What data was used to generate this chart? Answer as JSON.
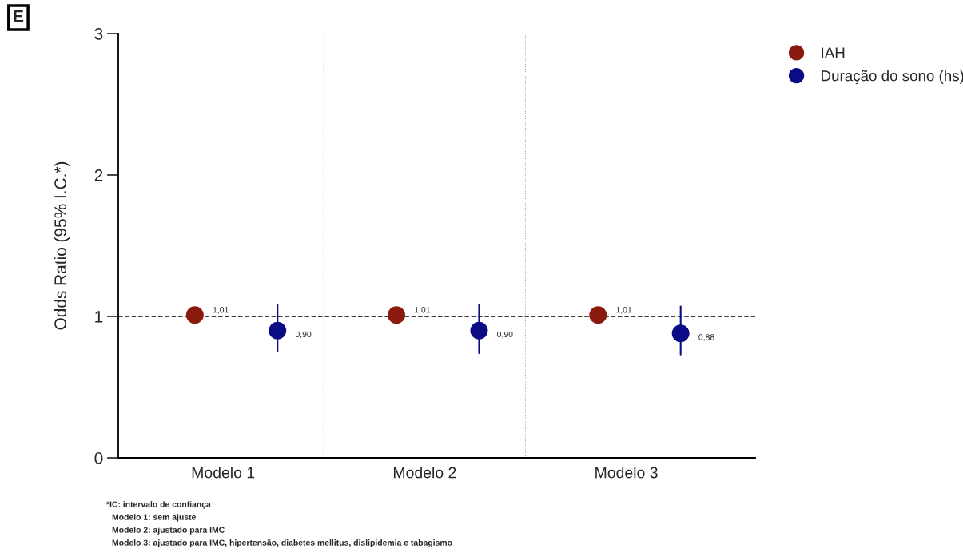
{
  "chart_data": {
    "type": "scatter",
    "ylabel": "Odds Ratio (95% I.C.*)",
    "categories": [
      "Modelo 1",
      "Modelo 2",
      "Modelo 3"
    ],
    "series": [
      {
        "name": "IAH",
        "color": "#8b1a0e",
        "values": [
          1.01,
          1.01,
          1.01
        ],
        "value_labels": [
          "1,01",
          "1,01",
          "1,01"
        ]
      },
      {
        "name": "Duração do sono (hs)",
        "color": "#0b0b85",
        "values": [
          0.9,
          0.9,
          0.88
        ],
        "errors": [
          [
            0.75,
            1.08
          ],
          [
            0.74,
            1.08
          ],
          [
            0.73,
            1.07
          ]
        ],
        "value_labels": [
          "0,90",
          "0,90",
          "0,88"
        ]
      }
    ],
    "ylim": [
      0,
      3
    ],
    "yticks": [
      0,
      1,
      2,
      3
    ],
    "ref_lines": [
      {
        "axis": "y",
        "value": 1,
        "line_style": "dashed",
        "color": "#000000"
      }
    ],
    "marker": "circle",
    "legend": "top right",
    "grid": false,
    "annotations": [
      "E",
      "*IC: intervalo de confiança",
      "Modelo 1: sem ajuste",
      "Modelo 2: ajustado para IMC",
      "Modelo 3: ajustado para IMC, hipertensão, diabetes mellitus, dislipidemia e tabagismo"
    ]
  }
}
